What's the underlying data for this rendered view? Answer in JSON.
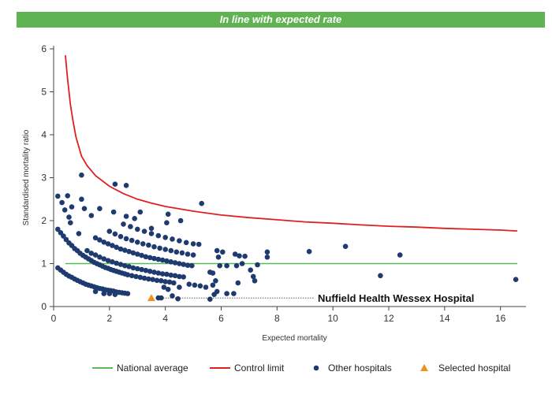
{
  "banner": {
    "title": "In line with expected rate"
  },
  "chart_data": {
    "type": "scatter",
    "title": "In line with expected rate",
    "xlabel": "Expected mortality",
    "ylabel": "Standardised mortality ratio",
    "xlim": [
      0,
      16.8
    ],
    "ylim": [
      0,
      6
    ],
    "xticks": [
      0,
      2,
      4,
      6,
      8,
      10,
      12,
      14,
      16
    ],
    "yticks": [
      0,
      1,
      2,
      3,
      4,
      5,
      6
    ],
    "grid": false,
    "legend_position": "bottom",
    "colors": {
      "national_average": "#5cb85c",
      "control_limit": "#e02020",
      "other_hospitals": "#1f3a6e",
      "selected_hospital": "#f0901e"
    },
    "national_average": {
      "name": "National average",
      "y": 1
    },
    "control_limit": {
      "name": "Control limit",
      "points": [
        [
          0.42,
          5.85
        ],
        [
          0.5,
          5.3
        ],
        [
          0.6,
          4.7
        ],
        [
          0.7,
          4.3
        ],
        [
          0.8,
          3.95
        ],
        [
          1.0,
          3.5
        ],
        [
          1.2,
          3.28
        ],
        [
          1.5,
          3.05
        ],
        [
          2.0,
          2.8
        ],
        [
          2.5,
          2.63
        ],
        [
          3.0,
          2.5
        ],
        [
          3.5,
          2.41
        ],
        [
          4.0,
          2.33
        ],
        [
          5.0,
          2.22
        ],
        [
          6.0,
          2.13
        ],
        [
          7.0,
          2.07
        ],
        [
          8.0,
          2.02
        ],
        [
          9.0,
          1.97
        ],
        [
          10.0,
          1.94
        ],
        [
          11.0,
          1.9
        ],
        [
          12.0,
          1.87
        ],
        [
          13.0,
          1.85
        ],
        [
          14.0,
          1.82
        ],
        [
          15.0,
          1.8
        ],
        [
          16.0,
          1.78
        ],
        [
          16.6,
          1.76
        ]
      ]
    },
    "other_hospitals": {
      "name": "Other hospitals",
      "points": [
        [
          0.15,
          0.9
        ],
        [
          0.25,
          0.85
        ],
        [
          0.35,
          0.8
        ],
        [
          0.45,
          0.75
        ],
        [
          0.55,
          0.71
        ],
        [
          0.65,
          0.68
        ],
        [
          0.75,
          0.64
        ],
        [
          0.85,
          0.61
        ],
        [
          0.95,
          0.58
        ],
        [
          1.05,
          0.55
        ],
        [
          1.15,
          0.52
        ],
        [
          1.25,
          0.5
        ],
        [
          1.35,
          0.48
        ],
        [
          1.45,
          0.46
        ],
        [
          1.55,
          0.44
        ],
        [
          1.65,
          0.42
        ],
        [
          1.75,
          0.41
        ],
        [
          1.85,
          0.39
        ],
        [
          1.95,
          0.38
        ],
        [
          2.05,
          0.37
        ],
        [
          2.15,
          0.36
        ],
        [
          2.25,
          0.34
        ],
        [
          2.35,
          0.33
        ],
        [
          2.45,
          0.32
        ],
        [
          2.55,
          0.31
        ],
        [
          2.65,
          0.3
        ],
        [
          1.5,
          0.35
        ],
        [
          1.8,
          0.3
        ],
        [
          2.0,
          0.3
        ],
        [
          2.2,
          0.28
        ],
        [
          0.15,
          1.8
        ],
        [
          0.25,
          1.72
        ],
        [
          0.35,
          1.64
        ],
        [
          0.45,
          1.56
        ],
        [
          0.55,
          1.48
        ],
        [
          0.65,
          1.42
        ],
        [
          0.75,
          1.35
        ],
        [
          0.85,
          1.3
        ],
        [
          0.95,
          1.24
        ],
        [
          1.05,
          1.19
        ],
        [
          1.15,
          1.15
        ],
        [
          1.25,
          1.11
        ],
        [
          1.35,
          1.07
        ],
        [
          1.45,
          1.03
        ],
        [
          1.55,
          1.0
        ],
        [
          1.65,
          0.97
        ],
        [
          1.75,
          0.94
        ],
        [
          1.85,
          0.91
        ],
        [
          1.95,
          0.89
        ],
        [
          2.05,
          0.86
        ],
        [
          2.15,
          0.84
        ],
        [
          2.25,
          0.82
        ],
        [
          2.35,
          0.8
        ],
        [
          2.45,
          0.78
        ],
        [
          2.55,
          0.76
        ],
        [
          2.65,
          0.74
        ],
        [
          2.8,
          0.72
        ],
        [
          2.95,
          0.7
        ],
        [
          3.1,
          0.68
        ],
        [
          3.25,
          0.66
        ],
        [
          3.4,
          0.64
        ],
        [
          3.55,
          0.63
        ],
        [
          3.7,
          0.61
        ],
        [
          3.85,
          0.6
        ],
        [
          4.0,
          0.58
        ],
        [
          4.15,
          0.57
        ],
        [
          1.2,
          1.3
        ],
        [
          1.35,
          1.24
        ],
        [
          1.5,
          1.2
        ],
        [
          1.65,
          1.15
        ],
        [
          1.8,
          1.11
        ],
        [
          1.95,
          1.07
        ],
        [
          2.1,
          1.04
        ],
        [
          2.25,
          1.01
        ],
        [
          2.4,
          0.98
        ],
        [
          2.55,
          0.95
        ],
        [
          2.7,
          0.93
        ],
        [
          2.85,
          0.9
        ],
        [
          3.0,
          0.88
        ],
        [
          3.15,
          0.86
        ],
        [
          3.3,
          0.84
        ],
        [
          3.45,
          0.82
        ],
        [
          3.6,
          0.8
        ],
        [
          3.75,
          0.78
        ],
        [
          3.9,
          0.76
        ],
        [
          4.05,
          0.75
        ],
        [
          4.2,
          0.73
        ],
        [
          4.35,
          0.72
        ],
        [
          4.5,
          0.7
        ],
        [
          4.65,
          0.69
        ],
        [
          1.5,
          1.6
        ],
        [
          1.65,
          1.55
        ],
        [
          1.8,
          1.5
        ],
        [
          1.95,
          1.46
        ],
        [
          2.1,
          1.42
        ],
        [
          2.25,
          1.38
        ],
        [
          2.4,
          1.34
        ],
        [
          2.55,
          1.31
        ],
        [
          2.7,
          1.28
        ],
        [
          2.85,
          1.25
        ],
        [
          3.0,
          1.22
        ],
        [
          3.15,
          1.19
        ],
        [
          3.3,
          1.16
        ],
        [
          3.45,
          1.14
        ],
        [
          3.6,
          1.12
        ],
        [
          3.75,
          1.1
        ],
        [
          3.9,
          1.08
        ],
        [
          4.05,
          1.06
        ],
        [
          4.2,
          1.04
        ],
        [
          4.35,
          1.02
        ],
        [
          4.5,
          1.0
        ],
        [
          4.65,
          0.98
        ],
        [
          4.8,
          0.96
        ],
        [
          4.95,
          0.95
        ],
        [
          2.0,
          1.75
        ],
        [
          2.2,
          1.69
        ],
        [
          2.4,
          1.63
        ],
        [
          2.6,
          1.58
        ],
        [
          2.8,
          1.54
        ],
        [
          3.0,
          1.5
        ],
        [
          3.2,
          1.46
        ],
        [
          3.4,
          1.43
        ],
        [
          3.6,
          1.39
        ],
        [
          3.8,
          1.36
        ],
        [
          4.0,
          1.33
        ],
        [
          4.2,
          1.3
        ],
        [
          4.4,
          1.27
        ],
        [
          4.6,
          1.25
        ],
        [
          4.8,
          1.22
        ],
        [
          5.0,
          1.2
        ],
        [
          2.5,
          1.92
        ],
        [
          2.75,
          1.86
        ],
        [
          3.0,
          1.8
        ],
        [
          3.25,
          1.75
        ],
        [
          3.5,
          1.7
        ],
        [
          3.75,
          1.65
        ],
        [
          4.0,
          1.61
        ],
        [
          4.25,
          1.57
        ],
        [
          4.5,
          1.53
        ],
        [
          4.75,
          1.49
        ],
        [
          5.0,
          1.46
        ],
        [
          0.15,
          2.57
        ],
        [
          0.3,
          2.42
        ],
        [
          0.5,
          2.58
        ],
        [
          0.65,
          2.32
        ],
        [
          0.55,
          2.08
        ],
        [
          1.0,
          3.06
        ],
        [
          1.0,
          2.5
        ],
        [
          1.1,
          2.28
        ],
        [
          1.35,
          2.12
        ],
        [
          1.65,
          2.28
        ],
        [
          2.2,
          2.85
        ],
        [
          2.6,
          2.82
        ],
        [
          2.15,
          2.2
        ],
        [
          2.6,
          2.1
        ],
        [
          3.1,
          2.2
        ],
        [
          2.9,
          2.05
        ],
        [
          3.5,
          1.82
        ],
        [
          4.1,
          2.15
        ],
        [
          4.55,
          2.0
        ],
        [
          4.05,
          1.95
        ],
        [
          5.3,
          2.4
        ],
        [
          0.4,
          2.25
        ],
        [
          0.6,
          1.95
        ],
        [
          0.9,
          1.7
        ],
        [
          5.2,
          1.45
        ],
        [
          5.6,
          0.8
        ],
        [
          5.7,
          0.78
        ],
        [
          5.8,
          0.6
        ],
        [
          5.7,
          0.5
        ],
        [
          5.45,
          0.45
        ],
        [
          5.25,
          0.48
        ],
        [
          5.05,
          0.5
        ],
        [
          4.85,
          0.52
        ],
        [
          5.9,
          1.15
        ],
        [
          5.85,
          1.3
        ],
        [
          6.05,
          1.27
        ],
        [
          6.5,
          1.22
        ],
        [
          6.65,
          1.18
        ],
        [
          6.85,
          1.17
        ],
        [
          5.95,
          0.95
        ],
        [
          6.2,
          0.95
        ],
        [
          6.55,
          0.95
        ],
        [
          6.75,
          1.0
        ],
        [
          7.05,
          0.85
        ],
        [
          7.3,
          0.97
        ],
        [
          7.15,
          0.7
        ],
        [
          7.2,
          0.6
        ],
        [
          6.6,
          0.55
        ],
        [
          6.45,
          0.3
        ],
        [
          6.2,
          0.3
        ],
        [
          5.6,
          0.17
        ],
        [
          5.75,
          0.28
        ],
        [
          5.85,
          0.35
        ],
        [
          4.45,
          0.18
        ],
        [
          4.25,
          0.25
        ],
        [
          3.85,
          0.2
        ],
        [
          3.75,
          0.2
        ],
        [
          3.95,
          0.45
        ],
        [
          4.1,
          0.4
        ],
        [
          4.3,
          0.55
        ],
        [
          4.5,
          0.45
        ],
        [
          7.65,
          1.27
        ],
        [
          7.65,
          1.15
        ],
        [
          9.15,
          1.28
        ],
        [
          10.45,
          1.4
        ],
        [
          11.7,
          0.72
        ],
        [
          12.4,
          1.2
        ],
        [
          16.55,
          0.63
        ]
      ]
    },
    "selected_hospital": {
      "name": "Selected hospital",
      "x": 3.5,
      "y": 0.2,
      "label": "Nuffield Health Wessex Hospital"
    }
  }
}
